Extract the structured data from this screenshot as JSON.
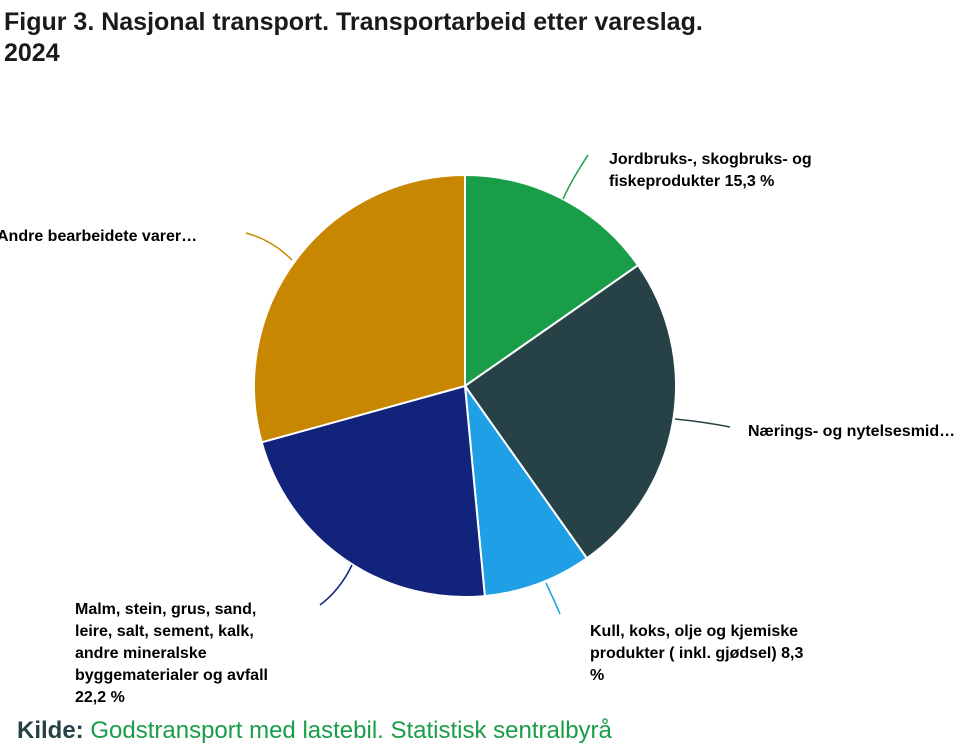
{
  "title": "Figur 3. Nasjonal transport. Transportarbeid etter vareslag. 2024",
  "colors": {
    "agri": "#1a9d49",
    "food": "#274247",
    "coal": "#1f9fe5",
    "ore": "#12237c",
    "other": "#c88700",
    "title": "#1a1a1a",
    "source_key": "#274247",
    "source_text": "#1a9d49"
  },
  "chart_data": {
    "type": "pie",
    "title": "Figur 3. Nasjonal transport. Transportarbeid etter vareslag. 2024",
    "unit": "%",
    "start_angle_deg": 0,
    "direction": "clockwise",
    "slices": [
      {
        "id": "agri",
        "label": "Jordbruks-, skogbruks- og fiskeprodukter 15,3 %",
        "value": 15.3,
        "color": "#1a9d49"
      },
      {
        "id": "food",
        "label": "Nærings- og nytelsesmid…",
        "value": 24.9,
        "color": "#274247"
      },
      {
        "id": "coal",
        "label": "Kull, koks, olje og kjemiske produkter ( inkl. gjødsel) 8,3 %",
        "value": 8.3,
        "color": "#1f9fe5"
      },
      {
        "id": "ore",
        "label": "Malm, stein, grus, sand, leire, salt, sement, kalk, andre mineralske byggematerialer og avfall 22,2 %",
        "value": 22.2,
        "color": "#12237c"
      },
      {
        "id": "other",
        "label": "Andre bearbeidete varer…",
        "value": 29.3,
        "color": "#c88700"
      }
    ]
  },
  "labels": {
    "agri": "Jordbruks-, skogbruks- og\nfiskeprodukter 15,3 %",
    "food": "Nærings- og nytelsesmid…",
    "coal": "Kull, koks, olje og kjemiske\nprodukter ( inkl. gjødsel) 8,3\n%",
    "ore": "Malm, stein, grus, sand,\nleire, salt, sement, kalk,\nandre mineralske\nbyggematerialer og avfall\n22,2 %",
    "other": "Andre bearbeidete varer…"
  },
  "source": {
    "key": "Kilde:",
    "text": "Godstransport med lastebil. Statistisk sentralbyrå"
  }
}
